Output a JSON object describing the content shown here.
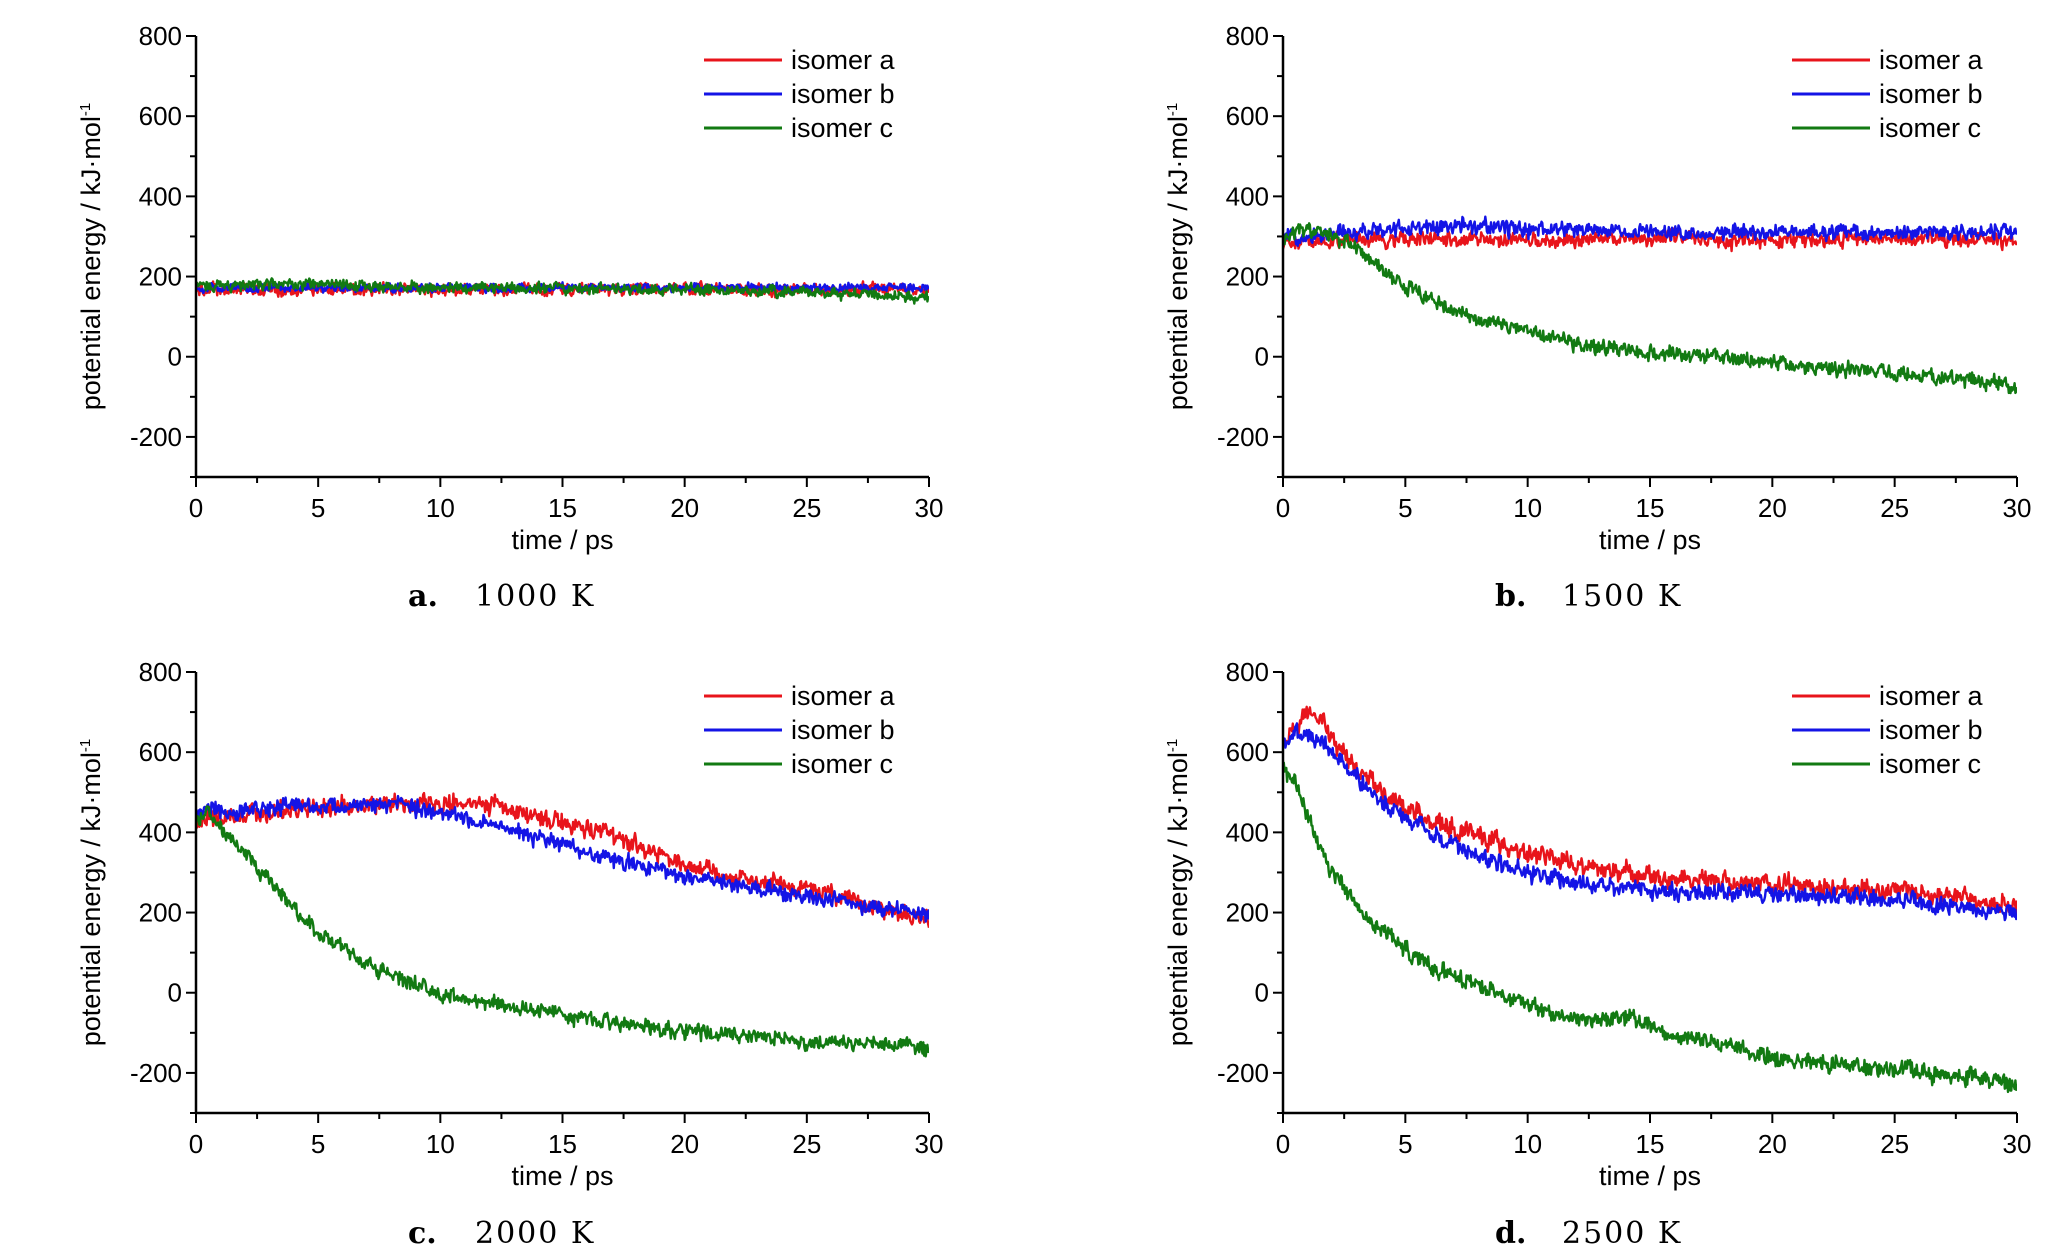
{
  "chart_data": [
    {
      "type": "line",
      "panel": "a.",
      "caption": "1000 K",
      "xlabel": "time / ps",
      "ylabel": "potential energy / kJ·mol",
      "ylabel_sup": "-1",
      "xlim": [
        0,
        30
      ],
      "ylim": [
        -300,
        800
      ],
      "xticks": [
        "0",
        "5",
        "10",
        "15",
        "20",
        "25",
        "30"
      ],
      "yticks": [
        "-200",
        "0",
        "200",
        "400",
        "600",
        "800"
      ],
      "legend_position": "top-right",
      "series": [
        {
          "name": "isomer a",
          "color": "#e8141b",
          "noise": 18,
          "x": [
            0,
            30
          ],
          "y": [
            168,
            168
          ]
        },
        {
          "name": "isomer b",
          "color": "#1414e6",
          "noise": 12,
          "x": [
            0,
            30
          ],
          "y": [
            172,
            172
          ]
        },
        {
          "name": "isomer c",
          "color": "#127a12",
          "noise": 16,
          "x": [
            0,
            5,
            10,
            15,
            20,
            25,
            30
          ],
          "y": [
            178,
            180,
            172,
            172,
            168,
            162,
            148
          ]
        }
      ]
    },
    {
      "type": "line",
      "panel": "b.",
      "caption": "1500 K",
      "xlabel": "time / ps",
      "ylabel": "potential energy / kJ·mol",
      "ylabel_sup": "-1",
      "xlim": [
        0,
        30
      ],
      "ylim": [
        -300,
        800
      ],
      "xticks": [
        "0",
        "5",
        "10",
        "15",
        "20",
        "25",
        "30"
      ],
      "yticks": [
        "-200",
        "0",
        "200",
        "400",
        "600",
        "800"
      ],
      "legend_position": "top-right",
      "series": [
        {
          "name": "isomer a",
          "color": "#e8141b",
          "noise": 22,
          "x": [
            0,
            5,
            10,
            15,
            20,
            25,
            30
          ],
          "y": [
            290,
            292,
            290,
            295,
            290,
            295,
            292
          ]
        },
        {
          "name": "isomer b",
          "color": "#1414e6",
          "noise": 22,
          "x": [
            0,
            5,
            8,
            10,
            15,
            20,
            25,
            30
          ],
          "y": [
            300,
            320,
            325,
            318,
            312,
            310,
            310,
            312
          ]
        },
        {
          "name": "isomer c",
          "color": "#127a12",
          "noise": 22,
          "x": [
            0,
            1,
            2,
            3,
            4,
            5,
            6,
            8,
            10,
            12,
            15,
            18,
            20,
            22,
            25,
            28,
            30
          ],
          "y": [
            300,
            320,
            300,
            270,
            220,
            175,
            140,
            95,
            60,
            35,
            10,
            0,
            -15,
            -30,
            -40,
            -55,
            -75
          ]
        }
      ]
    },
    {
      "type": "line",
      "panel": "c.",
      "caption": "2000 K",
      "xlabel": "time / ps",
      "ylabel": "potential energy / kJ·mol",
      "ylabel_sup": "-1",
      "xlim": [
        0,
        30
      ],
      "ylim": [
        -300,
        800
      ],
      "xticks": [
        "0",
        "5",
        "10",
        "15",
        "20",
        "25",
        "30"
      ],
      "yticks": [
        "-200",
        "0",
        "200",
        "400",
        "600",
        "800"
      ],
      "legend_position": "top-right",
      "series": [
        {
          "name": "isomer a",
          "color": "#e8141b",
          "noise": 26,
          "x": [
            0,
            2,
            4,
            6,
            8,
            10,
            12,
            14,
            16,
            18,
            20,
            22,
            24,
            26,
            28,
            30
          ],
          "y": [
            430,
            440,
            460,
            465,
            470,
            475,
            470,
            440,
            410,
            370,
            320,
            290,
            270,
            240,
            210,
            185
          ]
        },
        {
          "name": "isomer b",
          "color": "#1414e6",
          "noise": 24,
          "x": [
            0,
            2,
            4,
            6,
            8,
            10,
            12,
            14,
            16,
            18,
            20,
            22,
            24,
            26,
            28,
            30
          ],
          "y": [
            450,
            455,
            465,
            465,
            470,
            450,
            420,
            390,
            350,
            320,
            290,
            270,
            250,
            230,
            210,
            195
          ]
        },
        {
          "name": "isomer c",
          "color": "#127a12",
          "noise": 22,
          "x": [
            0,
            0.5,
            1,
            2,
            3,
            4,
            5,
            6,
            7,
            8,
            10,
            12,
            15,
            18,
            20,
            25,
            30
          ],
          "y": [
            420,
            460,
            410,
            350,
            280,
            210,
            150,
            115,
            75,
            45,
            0,
            -25,
            -55,
            -80,
            -95,
            -120,
            -140
          ]
        }
      ]
    },
    {
      "type": "line",
      "panel": "d.",
      "caption": "2500 K",
      "xlabel": "time / ps",
      "ylabel": "potential energy / kJ·mol",
      "ylabel_sup": "-1",
      "xlim": [
        0,
        30
      ],
      "ylim": [
        -300,
        800
      ],
      "xticks": [
        "0",
        "5",
        "10",
        "15",
        "20",
        "25",
        "30"
      ],
      "yticks": [
        "-200",
        "0",
        "200",
        "400",
        "600",
        "800"
      ],
      "legend_position": "top-right",
      "series": [
        {
          "name": "isomer a",
          "color": "#e8141b",
          "noise": 28,
          "x": [
            0,
            0.5,
            1,
            1.5,
            2,
            3,
            4,
            5,
            6,
            8,
            10,
            12,
            15,
            18,
            20,
            22,
            25,
            28,
            30
          ],
          "y": [
            620,
            660,
            700,
            680,
            630,
            560,
            500,
            470,
            430,
            390,
            350,
            320,
            290,
            275,
            270,
            265,
            255,
            235,
            215
          ]
        },
        {
          "name": "isomer b",
          "color": "#1414e6",
          "noise": 24,
          "x": [
            0,
            0.5,
            1,
            2,
            3,
            4,
            5,
            6,
            8,
            10,
            12,
            15,
            18,
            20,
            22,
            25,
            28,
            30
          ],
          "y": [
            620,
            650,
            640,
            600,
            540,
            480,
            440,
            400,
            340,
            300,
            275,
            255,
            250,
            245,
            240,
            230,
            210,
            195
          ]
        },
        {
          "name": "isomer c",
          "color": "#127a12",
          "noise": 24,
          "x": [
            0,
            0.5,
            1,
            1.5,
            2,
            3,
            4,
            5,
            6,
            8,
            10,
            12,
            14,
            16,
            18,
            20,
            22,
            25,
            28,
            30
          ],
          "y": [
            560,
            520,
            440,
            360,
            300,
            220,
            160,
            110,
            70,
            20,
            -30,
            -70,
            -60,
            -110,
            -130,
            -160,
            -175,
            -190,
            -210,
            -230
          ]
        }
      ]
    }
  ]
}
